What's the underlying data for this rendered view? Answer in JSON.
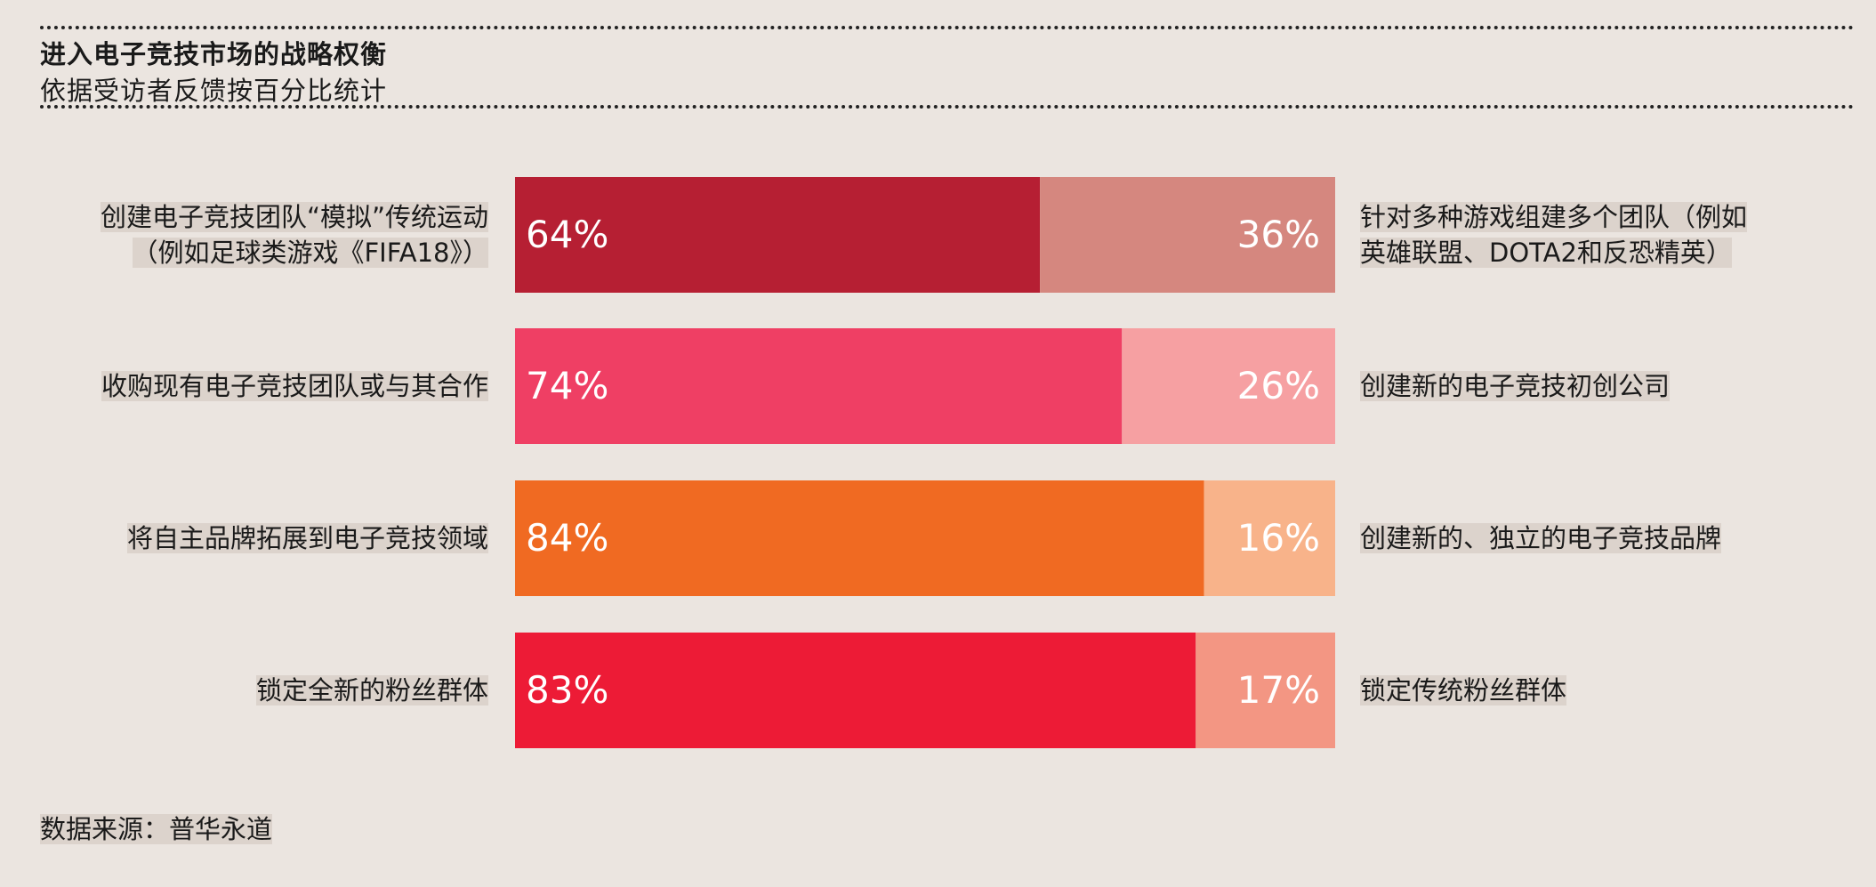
{
  "header": {
    "title": "进入电子竞技市场的战略权衡",
    "subtitle": "依据受访者反馈按百分比统计"
  },
  "source": "数据来源：普华永道",
  "chart_data": {
    "type": "bar",
    "orientation": "horizontal-stacked-100",
    "title": "进入电子竞技市场的战略权衡",
    "subtitle": "依据受访者反馈按百分比统计",
    "xlim": [
      0,
      100
    ],
    "rows": [
      {
        "left_label": "创建电子竞技团队“模拟”传统运动（例如足球类游戏《FIFA18》）",
        "left_lines": [
          "创建电子竞技团队“模拟”传统运动",
          "（例如足球类游戏《FIFA18》）"
        ],
        "left_value": 64,
        "left_text": "64%",
        "right_label": "针对多种游戏组建多个团队（例如英雄联盟、DOTA2和反恐精英）",
        "right_lines": [
          "针对多种游戏组建多个团队（例如",
          "英雄联盟、DOTA2和反恐精英）"
        ],
        "right_value": 36,
        "right_text": "36%",
        "left_color": "#b61f33",
        "right_color": "#d5877f"
      },
      {
        "left_label": "收购现有电子竞技团队或与其合作",
        "left_lines": [
          "收购现有电子竞技团队或与其合作"
        ],
        "left_value": 74,
        "left_text": "74%",
        "right_label": "创建新的电子竞技初创公司",
        "right_lines": [
          "创建新的电子竞技初创公司"
        ],
        "right_value": 26,
        "right_text": "26%",
        "left_color": "#ef3f64",
        "right_color": "#f6a0a2"
      },
      {
        "left_label": "将自主品牌拓展到电子竞技领域",
        "left_lines": [
          "将自主品牌拓展到电子竞技领域"
        ],
        "left_value": 84,
        "left_text": "84%",
        "right_label": "创建新的、独立的电子竞技品牌",
        "right_lines": [
          "创建新的、独立的电子竞技品牌"
        ],
        "right_value": 16,
        "right_text": "16%",
        "left_color": "#f06a22",
        "right_color": "#f8b38a"
      },
      {
        "left_label": "锁定全新的粉丝群体",
        "left_lines": [
          "锁定全新的粉丝群体"
        ],
        "left_value": 83,
        "left_text": "83%",
        "right_label": "锁定传统粉丝群体",
        "right_lines": [
          "锁定传统粉丝群体"
        ],
        "right_value": 17,
        "right_text": "17%",
        "left_color": "#ed1b36",
        "right_color": "#f39683"
      }
    ]
  }
}
